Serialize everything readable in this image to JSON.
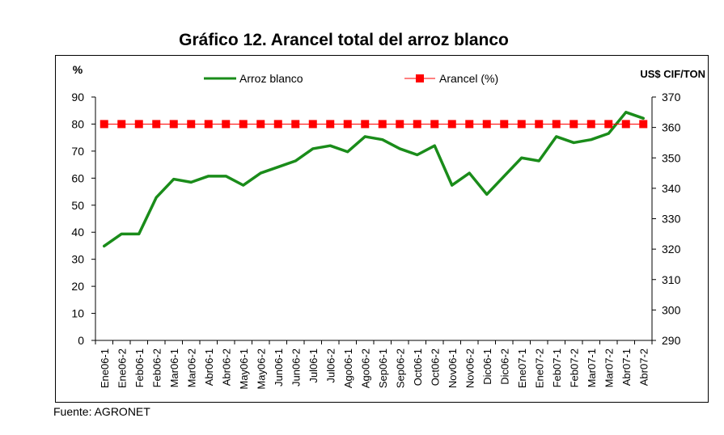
{
  "title": "Gráfico 12. Arancel total del arroz blanco",
  "source": "Fuente: AGRONET",
  "chart_data": {
    "type": "line",
    "title": "Gráfico 12. Arancel total del arroz blanco",
    "ylabel_left": "%",
    "ylabel_right": "US$ CIF/TON",
    "ylim_left": [
      0,
      90
    ],
    "yticks_left": [
      0,
      10,
      20,
      30,
      40,
      50,
      60,
      70,
      80,
      90
    ],
    "ylim_right": [
      290,
      370
    ],
    "yticks_right": [
      290,
      300,
      310,
      320,
      330,
      340,
      350,
      360,
      370
    ],
    "grid": false,
    "legend_position": "top",
    "categories": [
      "Ene06-1",
      "Ene06-2",
      "Feb06-1",
      "Feb06-2",
      "Mar06-1",
      "Mar06-2",
      "Abr06-1",
      "Abr06-2",
      "May06-1",
      "May06-2",
      "Jun06-1",
      "Jun06-2",
      "Jul06-1",
      "Jul06-2",
      "Ago06-1",
      "Ago06-2",
      "Sep06-1",
      "Sep06-2",
      "Oct06-1",
      "Oct06-2",
      "Nov06-1",
      "Nov06-2",
      "Dic06-1",
      "Dic06-2",
      "Ene07-1",
      "Ene07-2",
      "Feb07-1",
      "Feb07-2",
      "Mar07-1",
      "Mar07-2",
      "Abr07-1",
      "Abr07-2"
    ],
    "series": [
      {
        "name": "Arroz blanco",
        "axis": "right",
        "color": "#1a8c1a",
        "values": [
          321,
          325,
          325,
          337,
          343,
          342,
          344,
          344,
          341,
          345,
          347,
          349,
          353,
          354,
          352,
          357,
          356,
          353,
          351,
          354,
          341,
          345,
          338,
          344,
          350,
          349,
          357,
          355,
          356,
          358,
          365,
          363
        ]
      },
      {
        "name": "Arancel (%)",
        "axis": "left",
        "color": "#ff0000",
        "values": [
          80,
          80,
          80,
          80,
          80,
          80,
          80,
          80,
          80,
          80,
          80,
          80,
          80,
          80,
          80,
          80,
          80,
          80,
          80,
          80,
          80,
          80,
          80,
          80,
          80,
          80,
          80,
          80,
          80,
          80,
          80,
          80
        ]
      }
    ]
  }
}
